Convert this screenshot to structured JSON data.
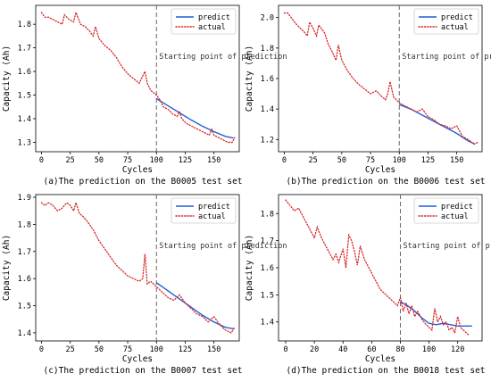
{
  "colors": {
    "predict": "#1f5fd6",
    "actual": "#d62728",
    "divider": "#666666"
  },
  "chart_data": [
    {
      "type": "line",
      "caption": "(a)The prediction on the B0005 test set",
      "xlabel": "Cycles",
      "ylabel": "Capacity (Ah)",
      "annotation": "Starting point of prediction",
      "prediction_start": 100,
      "xlim": [
        -5,
        172
      ],
      "ylim": [
        1.26,
        1.88
      ],
      "xticks": [
        0,
        25,
        50,
        75,
        100,
        125,
        150
      ],
      "yticks": [
        1.3,
        1.4,
        1.5,
        1.6,
        1.7,
        1.8
      ],
      "legend": "top-right",
      "series": [
        {
          "name": "predict",
          "style": "solid",
          "x": [
            100,
            110,
            120,
            130,
            140,
            150,
            160,
            167
          ],
          "y": [
            1.485,
            1.455,
            1.425,
            1.395,
            1.368,
            1.345,
            1.325,
            1.318
          ]
        },
        {
          "name": "actual",
          "style": "dotted",
          "x": [
            0,
            3,
            6,
            10,
            14,
            18,
            20,
            24,
            28,
            30,
            34,
            38,
            42,
            45,
            47,
            50,
            55,
            60,
            65,
            70,
            75,
            80,
            85,
            88,
            90,
            92,
            95,
            100,
            103,
            106,
            110,
            114,
            118,
            120,
            122,
            126,
            130,
            134,
            138,
            142,
            146,
            148,
            150,
            154,
            158,
            162,
            166,
            168
          ],
          "y": [
            1.85,
            1.83,
            1.83,
            1.82,
            1.81,
            1.8,
            1.84,
            1.82,
            1.81,
            1.85,
            1.8,
            1.79,
            1.77,
            1.75,
            1.79,
            1.74,
            1.71,
            1.69,
            1.66,
            1.62,
            1.59,
            1.57,
            1.55,
            1.58,
            1.6,
            1.55,
            1.52,
            1.5,
            1.48,
            1.45,
            1.44,
            1.42,
            1.41,
            1.43,
            1.4,
            1.38,
            1.37,
            1.36,
            1.35,
            1.34,
            1.33,
            1.355,
            1.33,
            1.32,
            1.31,
            1.3,
            1.3,
            1.32
          ]
        }
      ]
    },
    {
      "type": "line",
      "caption": "(b)The prediction on the B0006 test set",
      "xlabel": "Cycles",
      "ylabel": "Capacity (Ah)",
      "annotation": "Starting point of prediction",
      "prediction_start": 100,
      "xlim": [
        -5,
        172
      ],
      "ylim": [
        1.12,
        2.08
      ],
      "xticks": [
        0,
        25,
        50,
        75,
        100,
        125,
        150
      ],
      "yticks": [
        1.2,
        1.4,
        1.6,
        1.8,
        2.0
      ],
      "legend": "top-right",
      "series": [
        {
          "name": "predict",
          "style": "solid",
          "x": [
            100,
            110,
            120,
            130,
            140,
            150,
            160,
            166
          ],
          "y": [
            1.43,
            1.4,
            1.36,
            1.32,
            1.28,
            1.24,
            1.19,
            1.17
          ]
        },
        {
          "name": "actual",
          "style": "dotted",
          "x": [
            0,
            3,
            6,
            10,
            14,
            18,
            20,
            22,
            25,
            28,
            30,
            35,
            38,
            42,
            45,
            47,
            50,
            55,
            60,
            65,
            70,
            75,
            80,
            85,
            88,
            90,
            92,
            95,
            100,
            105,
            110,
            115,
            120,
            125,
            130,
            135,
            140,
            145,
            150,
            155,
            160,
            165,
            168
          ],
          "y": [
            2.03,
            2.03,
            2.0,
            1.96,
            1.93,
            1.9,
            1.88,
            1.97,
            1.93,
            1.88,
            1.95,
            1.9,
            1.83,
            1.77,
            1.72,
            1.82,
            1.72,
            1.65,
            1.6,
            1.56,
            1.53,
            1.5,
            1.52,
            1.48,
            1.46,
            1.5,
            1.58,
            1.48,
            1.44,
            1.42,
            1.4,
            1.38,
            1.4,
            1.35,
            1.33,
            1.3,
            1.29,
            1.27,
            1.29,
            1.22,
            1.2,
            1.17,
            1.18
          ]
        }
      ]
    },
    {
      "type": "line",
      "caption": "(c)The prediction on the B0007 test set",
      "xlabel": "Cycles",
      "ylabel": "Capacity (Ah)",
      "annotation": "Starting point of prediction",
      "prediction_start": 100,
      "xlim": [
        -5,
        172
      ],
      "ylim": [
        1.37,
        1.91
      ],
      "xticks": [
        0,
        25,
        50,
        75,
        100,
        125,
        150
      ],
      "yticks": [
        1.4,
        1.5,
        1.6,
        1.7,
        1.8,
        1.9
      ],
      "legend": "top-right",
      "series": [
        {
          "name": "predict",
          "style": "solid",
          "x": [
            100,
            110,
            120,
            130,
            140,
            150,
            160,
            167
          ],
          "y": [
            1.585,
            1.555,
            1.525,
            1.495,
            1.465,
            1.44,
            1.42,
            1.415
          ]
        },
        {
          "name": "actual",
          "style": "dotted",
          "x": [
            0,
            3,
            6,
            10,
            14,
            18,
            22,
            25,
            28,
            30,
            33,
            36,
            40,
            45,
            50,
            55,
            60,
            65,
            70,
            75,
            80,
            85,
            88,
            90,
            92,
            95,
            100,
            105,
            110,
            115,
            120,
            125,
            130,
            135,
            140,
            145,
            150,
            155,
            160,
            165,
            168
          ],
          "y": [
            1.88,
            1.87,
            1.88,
            1.87,
            1.85,
            1.86,
            1.88,
            1.87,
            1.85,
            1.88,
            1.84,
            1.83,
            1.81,
            1.78,
            1.74,
            1.71,
            1.68,
            1.65,
            1.63,
            1.61,
            1.6,
            1.59,
            1.6,
            1.69,
            1.58,
            1.59,
            1.57,
            1.55,
            1.53,
            1.52,
            1.54,
            1.51,
            1.49,
            1.47,
            1.46,
            1.44,
            1.46,
            1.43,
            1.41,
            1.4,
            1.42
          ]
        }
      ]
    },
    {
      "type": "line",
      "caption": "(d)The prediction on the B0018 test set",
      "xlabel": "Cycles",
      "ylabel": "Capacity (Ah)",
      "annotation": "Starting point of prediction",
      "prediction_start": 80,
      "xlim": [
        -5,
        137
      ],
      "ylim": [
        1.33,
        1.87
      ],
      "xticks": [
        0,
        20,
        40,
        60,
        80,
        100,
        120
      ],
      "yticks": [
        1.4,
        1.5,
        1.6,
        1.7,
        1.8
      ],
      "legend": "top-right",
      "series": [
        {
          "name": "predict",
          "style": "solid",
          "x": [
            80,
            85,
            90,
            95,
            100,
            105,
            110,
            115,
            120,
            125,
            130
          ],
          "y": [
            1.475,
            1.46,
            1.44,
            1.415,
            1.395,
            1.39,
            1.395,
            1.39,
            1.385,
            1.385,
            1.385
          ]
        },
        {
          "name": "actual",
          "style": "dotted",
          "x": [
            0,
            3,
            6,
            9,
            12,
            15,
            18,
            20,
            22,
            25,
            28,
            30,
            33,
            35,
            37,
            40,
            42,
            44,
            46,
            48,
            50,
            52,
            55,
            58,
            60,
            63,
            66,
            70,
            74,
            78,
            80,
            82,
            84,
            86,
            88,
            90,
            92,
            95,
            98,
            100,
            102,
            104,
            106,
            108,
            110,
            112,
            114,
            116,
            118,
            120,
            122,
            124,
            126,
            128
          ],
          "y": [
            1.85,
            1.83,
            1.81,
            1.82,
            1.79,
            1.76,
            1.73,
            1.71,
            1.75,
            1.71,
            1.68,
            1.66,
            1.63,
            1.65,
            1.62,
            1.67,
            1.6,
            1.72,
            1.7,
            1.66,
            1.61,
            1.68,
            1.63,
            1.6,
            1.58,
            1.55,
            1.52,
            1.5,
            1.48,
            1.46,
            1.49,
            1.44,
            1.47,
            1.43,
            1.46,
            1.42,
            1.44,
            1.41,
            1.39,
            1.38,
            1.37,
            1.45,
            1.4,
            1.42,
            1.39,
            1.4,
            1.37,
            1.38,
            1.36,
            1.42,
            1.38,
            1.37,
            1.36,
            1.35
          ]
        }
      ]
    }
  ]
}
